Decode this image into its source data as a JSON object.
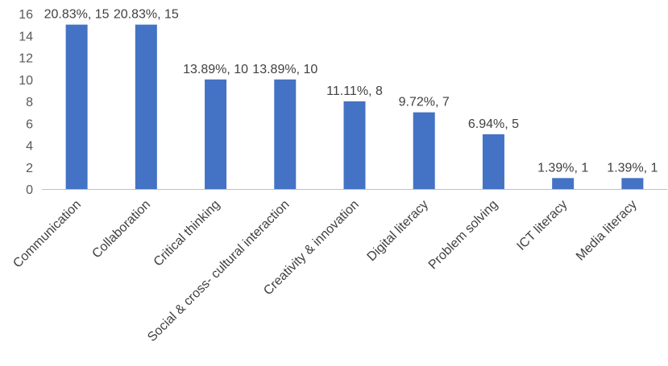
{
  "chart_data": {
    "type": "bar",
    "categories": [
      "Communication",
      "Collaboration",
      "Critical thinking",
      "Social & cross- cultural interaction",
      "Creativity & innovation",
      "Digital literacy",
      "Problem solving",
      "ICT literacy",
      "Media literacy"
    ],
    "values": [
      15,
      15,
      10,
      10,
      8,
      7,
      5,
      1,
      1
    ],
    "data_labels": [
      "20.83%, 15",
      "20.83%, 15",
      "13.89%, 10",
      "13.89%, 10",
      "11.11%, 8",
      "9.72%, 7",
      "6.94%, 5",
      "1.39%, 1",
      "1.39%, 1"
    ],
    "y_ticks": [
      "0",
      "2",
      "4",
      "6",
      "8",
      "10",
      "12",
      "14",
      "16"
    ],
    "ylim": [
      0,
      16
    ],
    "title": "",
    "xlabel": "",
    "ylabel": "",
    "grid": false,
    "legend": "none",
    "bar_color": "#4472C4",
    "axis_color": "#BFBFBF"
  }
}
